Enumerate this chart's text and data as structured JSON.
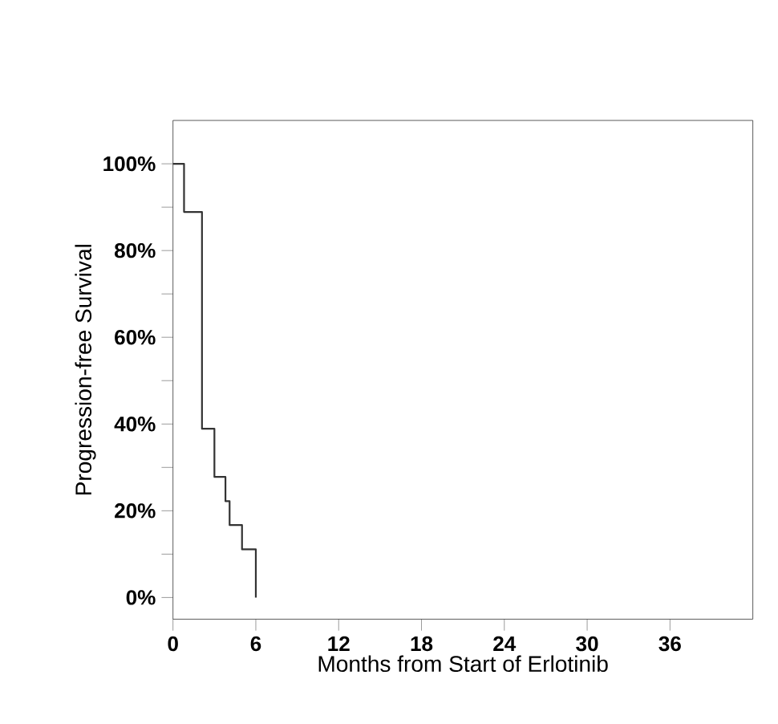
{
  "chart_data": {
    "type": "step",
    "xlabel": "Months from Start of Erlotinib",
    "ylabel": "Progression-free Survival",
    "x": [
      0,
      0.8,
      2.1,
      3.0,
      3.8,
      4.1,
      5.0,
      6.0
    ],
    "values": [
      100,
      88.9,
      38.9,
      27.8,
      22.2,
      16.7,
      11.1,
      0
    ],
    "color": "#333333",
    "xlim": [
      0,
      42
    ],
    "ylim": [
      -5,
      110
    ],
    "xticks": [
      0,
      6,
      12,
      18,
      24,
      30,
      36
    ],
    "yticks": [
      {
        "value": 0,
        "label": "0%"
      },
      {
        "value": 10,
        "label": null
      },
      {
        "value": 20,
        "label": "20%"
      },
      {
        "value": 30,
        "label": null
      },
      {
        "value": 40,
        "label": "40%"
      },
      {
        "value": 50,
        "label": null
      },
      {
        "value": 60,
        "label": "60%"
      },
      {
        "value": 70,
        "label": null
      },
      {
        "value": 80,
        "label": "80%"
      },
      {
        "value": 90,
        "label": null
      },
      {
        "value": 100,
        "label": "100%"
      }
    ],
    "grid": false,
    "marker": "none",
    "line_style": "solid"
  }
}
